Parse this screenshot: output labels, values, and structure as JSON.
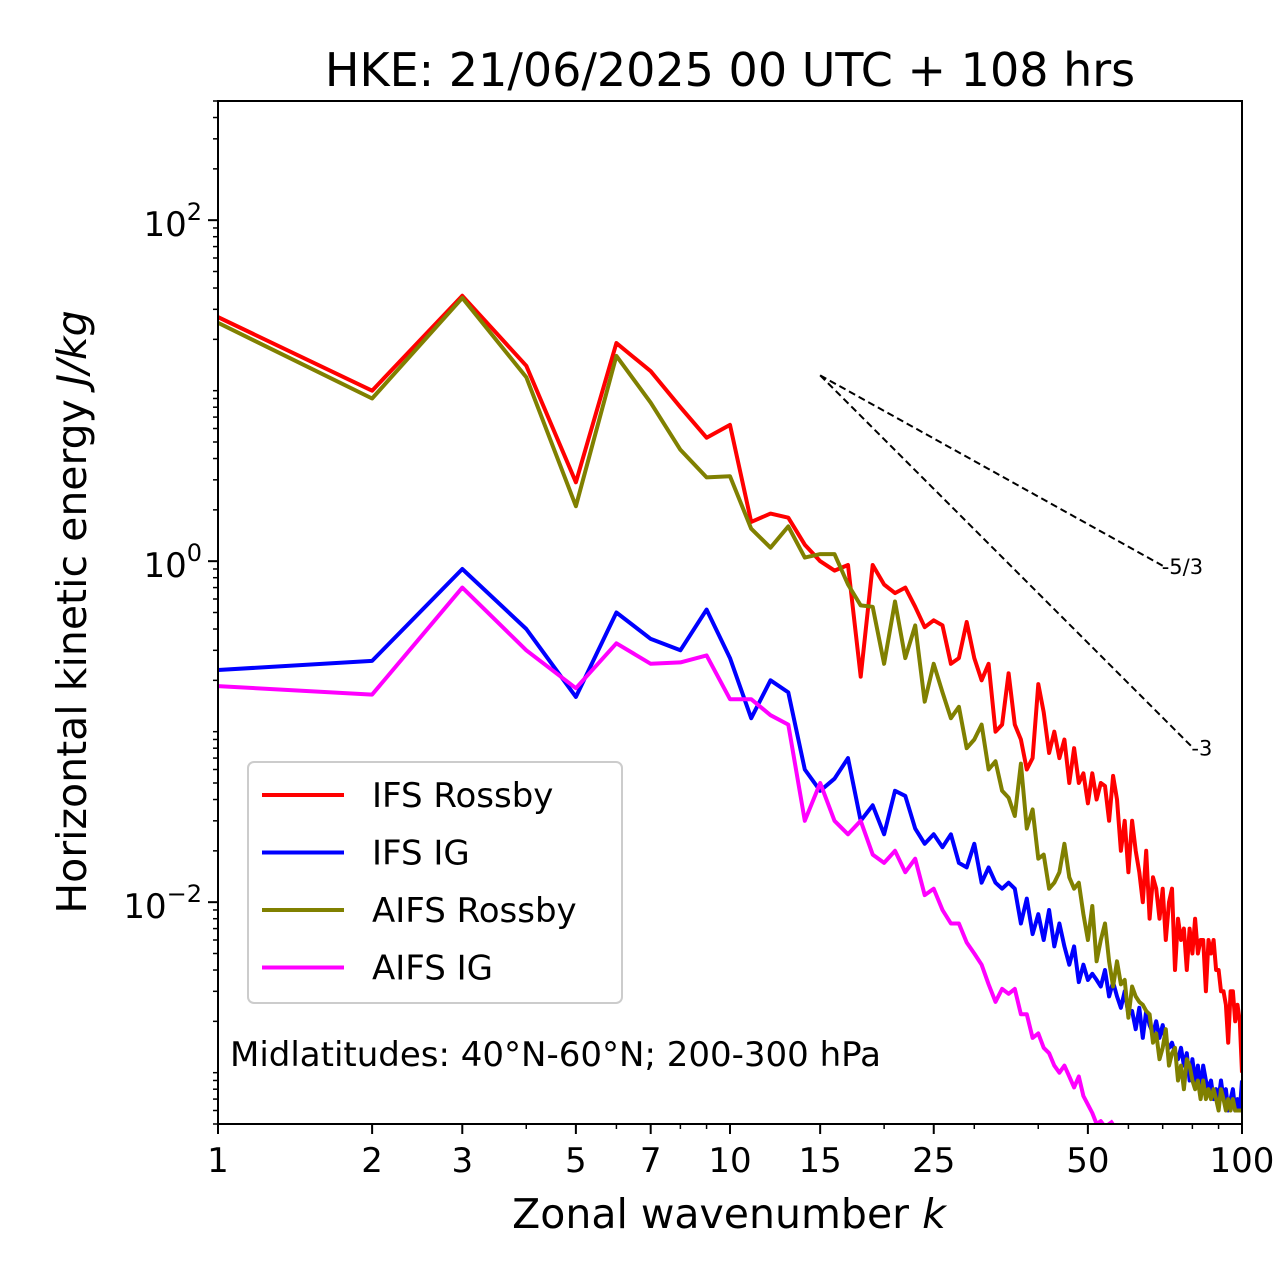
{
  "chart_data": {
    "type": "line",
    "title": "HKE: 21/06/2025 00 UTC + 108 hrs",
    "xlabel": "Zonal wavenumber",
    "xlabel_var": "k",
    "ylabel": "Horizontal kinetic energy",
    "ylabel_unit": "J/kg",
    "xscale": "log",
    "yscale": "log",
    "xlim": [
      1,
      100
    ],
    "ylim": [
      0.0005,
      500
    ],
    "xticks": [
      1,
      2,
      3,
      5,
      7,
      10,
      15,
      25,
      50,
      100
    ],
    "xtick_labels": [
      "1",
      "2",
      "3",
      "5",
      "7",
      "10",
      "15",
      "25",
      "50",
      "100"
    ],
    "yticks": [
      0.01,
      1,
      100
    ],
    "ytick_labels": [
      {
        "base": "10",
        "exp": "−2"
      },
      {
        "base": "10",
        "exp": "0"
      },
      {
        "base": "10",
        "exp": "2"
      }
    ],
    "annotation": "Midlatitudes: 40°N-60°N; 200-300 hPa",
    "legend_position": "lower-left",
    "reference_lines": [
      {
        "label": "-5/3",
        "slope": -1.6667,
        "x": [
          15,
          70
        ],
        "y": [
          12.3,
          0.94
        ]
      },
      {
        "label": "-3",
        "slope": -3,
        "x": [
          15,
          80
        ],
        "y": [
          12.3,
          0.081
        ]
      }
    ],
    "series": [
      {
        "name": "IFS Rossby",
        "color": "#ff0000",
        "x": [
          1,
          2,
          3,
          4,
          5,
          6,
          7,
          8,
          9,
          10,
          11,
          12,
          13,
          14,
          15,
          16,
          17,
          18,
          19,
          20,
          21,
          22,
          23,
          24,
          25,
          26,
          27,
          28,
          29,
          30,
          31,
          32,
          33,
          34,
          35,
          36,
          37,
          38,
          39,
          40,
          41,
          42,
          43,
          44,
          45,
          46,
          47,
          48,
          49,
          50,
          51,
          52,
          53,
          54,
          55,
          56,
          57,
          58,
          59,
          60,
          61,
          62,
          63,
          64,
          65,
          66,
          67,
          68,
          69,
          70,
          71,
          72,
          73,
          74,
          75,
          76,
          77,
          78,
          79,
          80,
          81,
          82,
          83,
          84,
          85,
          86,
          87,
          88,
          89,
          90,
          91,
          92,
          93,
          94,
          95,
          96,
          97,
          98,
          99,
          100
        ],
        "y": [
          27,
          10,
          36,
          14,
          2.9,
          19,
          13,
          8,
          5.3,
          6.3,
          1.7,
          1.9,
          1.8,
          1.25,
          1.0,
          0.88,
          0.95,
          0.21,
          0.95,
          0.73,
          0.65,
          0.7,
          0.54,
          0.41,
          0.45,
          0.42,
          0.25,
          0.27,
          0.44,
          0.27,
          0.2,
          0.25,
          0.1,
          0.11,
          0.22,
          0.11,
          0.09,
          0.06,
          0.07,
          0.19,
          0.13,
          0.075,
          0.1,
          0.07,
          0.09,
          0.05,
          0.08,
          0.05,
          0.057,
          0.038,
          0.057,
          0.04,
          0.05,
          0.048,
          0.03,
          0.055,
          0.04,
          0.02,
          0.03,
          0.015,
          0.03,
          0.02,
          0.015,
          0.01,
          0.02,
          0.008,
          0.014,
          0.012,
          0.008,
          0.012,
          0.006,
          0.01,
          0.012,
          0.004,
          0.008,
          0.006,
          0.007,
          0.004,
          0.007,
          0.005,
          0.008,
          0.005,
          0.006,
          0.006,
          0.003,
          0.006,
          0.005,
          0.006,
          0.004,
          0.004,
          0.003,
          0.003,
          0.0025,
          0.0015,
          0.003,
          0.003,
          0.002,
          0.0025,
          0.002,
          0.001
        ]
      },
      {
        "name": "IFS IG",
        "color": "#0000ff",
        "x": [
          1,
          2,
          3,
          4,
          5,
          6,
          7,
          8,
          9,
          10,
          11,
          12,
          13,
          14,
          15,
          16,
          17,
          18,
          19,
          20,
          21,
          22,
          23,
          24,
          25,
          26,
          27,
          28,
          29,
          30,
          31,
          32,
          33,
          34,
          35,
          36,
          37,
          38,
          39,
          40,
          41,
          42,
          43,
          44,
          45,
          46,
          47,
          48,
          49,
          50,
          51,
          52,
          53,
          54,
          55,
          56,
          57,
          58,
          59,
          60,
          61,
          62,
          63,
          64,
          65,
          66,
          67,
          68,
          69,
          70,
          71,
          72,
          73,
          74,
          75,
          76,
          77,
          78,
          79,
          80,
          81,
          82,
          83,
          84,
          85,
          86,
          87,
          88,
          89,
          90,
          91,
          92,
          93,
          94,
          95,
          96,
          97,
          98,
          99,
          100
        ],
        "y": [
          0.23,
          0.26,
          0.9,
          0.4,
          0.16,
          0.5,
          0.35,
          0.3,
          0.52,
          0.27,
          0.12,
          0.2,
          0.17,
          0.06,
          0.045,
          0.053,
          0.07,
          0.03,
          0.037,
          0.025,
          0.045,
          0.042,
          0.027,
          0.022,
          0.025,
          0.021,
          0.025,
          0.017,
          0.016,
          0.022,
          0.013,
          0.016,
          0.013,
          0.012,
          0.013,
          0.012,
          0.0075,
          0.0105,
          0.0065,
          0.0085,
          0.006,
          0.009,
          0.0055,
          0.0075,
          0.0055,
          0.0043,
          0.0055,
          0.0034,
          0.0043,
          0.0035,
          0.0038,
          0.0035,
          0.0032,
          0.004,
          0.0028,
          0.0034,
          0.0028,
          0.0024,
          0.003,
          0.0022,
          0.0023,
          0.0018,
          0.0024,
          0.0016,
          0.0023,
          0.0019,
          0.0017,
          0.002,
          0.0016,
          0.0019,
          0.0015,
          0.0014,
          0.0015,
          0.0013,
          0.0012,
          0.0014,
          0.0011,
          0.0013,
          0.0009,
          0.0012,
          0.0009,
          0.0011,
          0.0008,
          0.0011,
          0.0009,
          0.0008,
          0.0009,
          0.0007,
          0.0008,
          0.0007,
          0.0009,
          0.0007,
          0.0008,
          0.0006,
          0.0007,
          0.0008,
          0.0006,
          0.0007,
          0.0006,
          0.0009
        ]
      },
      {
        "name": "AIFS Rossby",
        "color": "#808000",
        "x": [
          1,
          2,
          3,
          4,
          5,
          6,
          7,
          8,
          9,
          10,
          11,
          12,
          13,
          14,
          15,
          16,
          17,
          18,
          19,
          20,
          21,
          22,
          23,
          24,
          25,
          26,
          27,
          28,
          29,
          30,
          31,
          32,
          33,
          34,
          35,
          36,
          37,
          38,
          39,
          40,
          41,
          42,
          43,
          44,
          45,
          46,
          47,
          48,
          49,
          50,
          51,
          52,
          53,
          54,
          55,
          56,
          57,
          58,
          59,
          60,
          61,
          62,
          63,
          64,
          65,
          66,
          67,
          68,
          69,
          70,
          71,
          72,
          73,
          74,
          75,
          76,
          77,
          78,
          79,
          80,
          81,
          82,
          83,
          84,
          85,
          86,
          87,
          88,
          89,
          90,
          91,
          92,
          93,
          94,
          95,
          96,
          97,
          98,
          99,
          100
        ],
        "y": [
          25,
          9,
          35,
          12,
          2.1,
          16,
          8.5,
          4.5,
          3.1,
          3.15,
          1.55,
          1.2,
          1.6,
          1.05,
          1.1,
          1.1,
          0.73,
          0.55,
          0.54,
          0.25,
          0.58,
          0.27,
          0.42,
          0.15,
          0.25,
          0.17,
          0.12,
          0.14,
          0.08,
          0.09,
          0.11,
          0.06,
          0.067,
          0.045,
          0.041,
          0.032,
          0.065,
          0.027,
          0.035,
          0.018,
          0.019,
          0.012,
          0.013,
          0.015,
          0.022,
          0.014,
          0.012,
          0.013,
          0.0085,
          0.006,
          0.0095,
          0.0045,
          0.006,
          0.0075,
          0.0045,
          0.0032,
          0.0045,
          0.0033,
          0.0035,
          0.0021,
          0.0032,
          0.0028,
          0.0026,
          0.0025,
          0.0023,
          0.0022,
          0.0015,
          0.0017,
          0.0012,
          0.0014,
          0.0018,
          0.0011,
          0.0013,
          0.0014,
          0.0009,
          0.0011,
          0.0008,
          0.0012,
          0.0011,
          0.0009,
          0.0008,
          0.0009,
          0.0007,
          0.0009,
          0.0007,
          0.0008,
          0.0007,
          0.0008,
          0.0007,
          0.0006,
          0.0008,
          0.0007,
          0.0006,
          0.0007,
          0.0006,
          0.0007,
          0.0006,
          0.0006,
          0.0006,
          0.0006
        ]
      },
      {
        "name": "AIFS IG",
        "color": "#ff00ff",
        "x": [
          1,
          2,
          3,
          4,
          5,
          6,
          7,
          8,
          9,
          10,
          11,
          12,
          13,
          14,
          15,
          16,
          17,
          18,
          19,
          20,
          21,
          22,
          23,
          24,
          25,
          26,
          27,
          28,
          29,
          30,
          31,
          32,
          33,
          34,
          35,
          36,
          37,
          38,
          39,
          40,
          41,
          42,
          43,
          44,
          45,
          46,
          47,
          48,
          49,
          50,
          51,
          52,
          53,
          54,
          55,
          56
        ],
        "y": [
          0.185,
          0.165,
          0.7,
          0.3,
          0.18,
          0.33,
          0.25,
          0.255,
          0.28,
          0.155,
          0.155,
          0.125,
          0.11,
          0.03,
          0.05,
          0.03,
          0.025,
          0.03,
          0.019,
          0.017,
          0.02,
          0.015,
          0.018,
          0.011,
          0.012,
          0.009,
          0.0075,
          0.0075,
          0.0058,
          0.005,
          0.0043,
          0.0033,
          0.0026,
          0.0031,
          0.0029,
          0.0031,
          0.0022,
          0.0022,
          0.0016,
          0.0017,
          0.0014,
          0.0013,
          0.0011,
          0.001,
          0.0011,
          0.00095,
          0.00082,
          0.00095,
          0.00073,
          0.00065,
          0.00058,
          0.0005,
          0.00052,
          0.00048,
          0.0005,
          0.00052
        ]
      }
    ]
  }
}
